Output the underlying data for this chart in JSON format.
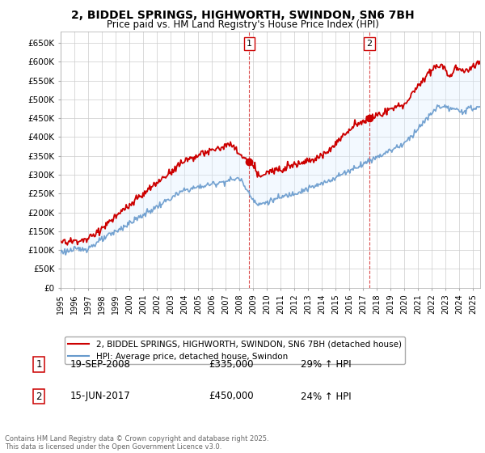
{
  "title_line1": "2, BIDDEL SPRINGS, HIGHWORTH, SWINDON, SN6 7BH",
  "title_line2": "Price paid vs. HM Land Registry's House Price Index (HPI)",
  "ylim": [
    0,
    680000
  ],
  "yticks": [
    0,
    50000,
    100000,
    150000,
    200000,
    250000,
    300000,
    350000,
    400000,
    450000,
    500000,
    550000,
    600000,
    650000
  ],
  "ytick_labels": [
    "£0",
    "£50K",
    "£100K",
    "£150K",
    "£200K",
    "£250K",
    "£300K",
    "£350K",
    "£400K",
    "£450K",
    "£500K",
    "£550K",
    "£600K",
    "£650K"
  ],
  "xlim_start": 1995.0,
  "xlim_end": 2025.5,
  "line1_color": "#cc0000",
  "line2_color": "#6699cc",
  "fill_color": "#ddeeff",
  "marker1_date": 2008.72,
  "marker1_price": 335000,
  "marker2_date": 2017.45,
  "marker2_price": 450000,
  "annotation1_label": "1",
  "annotation2_label": "2",
  "legend_line1": "2, BIDDEL SPRINGS, HIGHWORTH, SWINDON, SN6 7BH (detached house)",
  "legend_line2": "HPI: Average price, detached house, Swindon",
  "table_row1": [
    "1",
    "19-SEP-2008",
    "£335,000",
    "29% ↑ HPI"
  ],
  "table_row2": [
    "2",
    "15-JUN-2017",
    "£450,000",
    "24% ↑ HPI"
  ],
  "footer": "Contains HM Land Registry data © Crown copyright and database right 2025.\nThis data is licensed under the Open Government Licence v3.0.",
  "background_color": "#ffffff",
  "grid_color": "#cccccc",
  "vline_color": "#cc0000"
}
